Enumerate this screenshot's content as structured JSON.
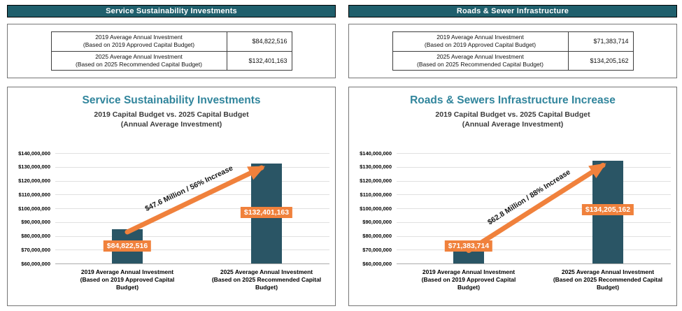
{
  "panels": [
    {
      "header": "Service Sustainability Investments",
      "summary_table": {
        "rows": [
          {
            "label_line1": "2019 Average Annual Investment",
            "label_line2": "(Based on 2019 Approved Capital Budget)",
            "value": "$84,822,516"
          },
          {
            "label_line1": "2025 Average Annual Investment",
            "label_line2": "(Based on 2025 Recommended Capital Budget)",
            "value": "$132,401,163"
          }
        ]
      }
    },
    {
      "header": "Roads & Sewer Infrastructure",
      "summary_table": {
        "rows": [
          {
            "label_line1": "2019 Average Annual Investment",
            "label_line2": "(Based on 2019 Approved Capital Budget)",
            "value": "$71,383,714"
          },
          {
            "label_line1": "2025 Average Annual Investment",
            "label_line2": "(Based on 2025 Recommended Capital Budget)",
            "value": "$134,205,162"
          }
        ]
      }
    }
  ],
  "chart_data": [
    {
      "type": "bar",
      "title": "Service Sustainability Investments",
      "subtitle_line1": "2019 Capital Budget vs. 2025 Capital Budget",
      "subtitle_line2": "(Annual Average Investment)",
      "categories": [
        "2019 Average Annual Investment (Based on 2019 Approved Capital Budget)",
        "2025 Average Annual Investment (Based on 2025 Recommended Capital Budget)"
      ],
      "category_lines": [
        [
          "2019 Average Annual Investment",
          "(Based on 2019 Approved Capital",
          "Budget)"
        ],
        [
          "2025 Average Annual Investment",
          "(Based on 2025 Recommended Capital",
          "Budget)"
        ]
      ],
      "values": [
        84822516,
        132401163
      ],
      "data_labels": [
        "$84,822,516",
        "$132,401,163"
      ],
      "annotation": "$47.6 Million / 56% Increase",
      "ylabel": "",
      "xlabel": "",
      "ylim": [
        60000000,
        140000000
      ],
      "ytick_step": 10000000,
      "ytick_labels": [
        "$140,000,000",
        "$130,000,000",
        "$120,000,000",
        "$110,000,000",
        "$100,000,000",
        "$90,000,000",
        "$80,000,000",
        "$70,000,000",
        "$60,000,000"
      ],
      "grid": true,
      "legend": "none",
      "bar_color": "#2A5565",
      "accent_color": "#F0813C"
    },
    {
      "type": "bar",
      "title": "Roads & Sewers Infrastructure Increase",
      "subtitle_line1": "2019 Capital Budget vs. 2025 Capital Budget",
      "subtitle_line2": "(Annual Average Investment)",
      "categories": [
        "2019 Average Annual Investment (Based on 2019 Approved Capital Budget)",
        "2025 Average Annual Investment (Based on 2025 Recommended Capital Budget)"
      ],
      "category_lines": [
        [
          "2019 Average Annual Investment",
          "(Based on 2019 Approved Capital",
          "Budget)"
        ],
        [
          "2025 Average Annual Investment",
          "(Based on 2025 Recommended Capital",
          "Budget)"
        ]
      ],
      "values": [
        71383714,
        134205162
      ],
      "data_labels": [
        "$71,383,714",
        "$134,205,162"
      ],
      "annotation": "$62.8 Million / 88% Increase",
      "ylabel": "",
      "xlabel": "",
      "ylim": [
        60000000,
        140000000
      ],
      "ytick_step": 10000000,
      "ytick_labels": [
        "$140,000,000",
        "$130,000,000",
        "$120,000,000",
        "$110,000,000",
        "$100,000,000",
        "$90,000,000",
        "$80,000,000",
        "$70,000,000",
        "$60,000,000"
      ],
      "grid": true,
      "legend": "none",
      "bar_color": "#2A5565",
      "accent_color": "#F0813C"
    }
  ],
  "colors": {
    "header_bg": "#1F5F6C",
    "chart_title": "#31859C",
    "bar": "#2A5565",
    "accent_orange": "#F0813C",
    "gridline": "#E0E0E0"
  }
}
